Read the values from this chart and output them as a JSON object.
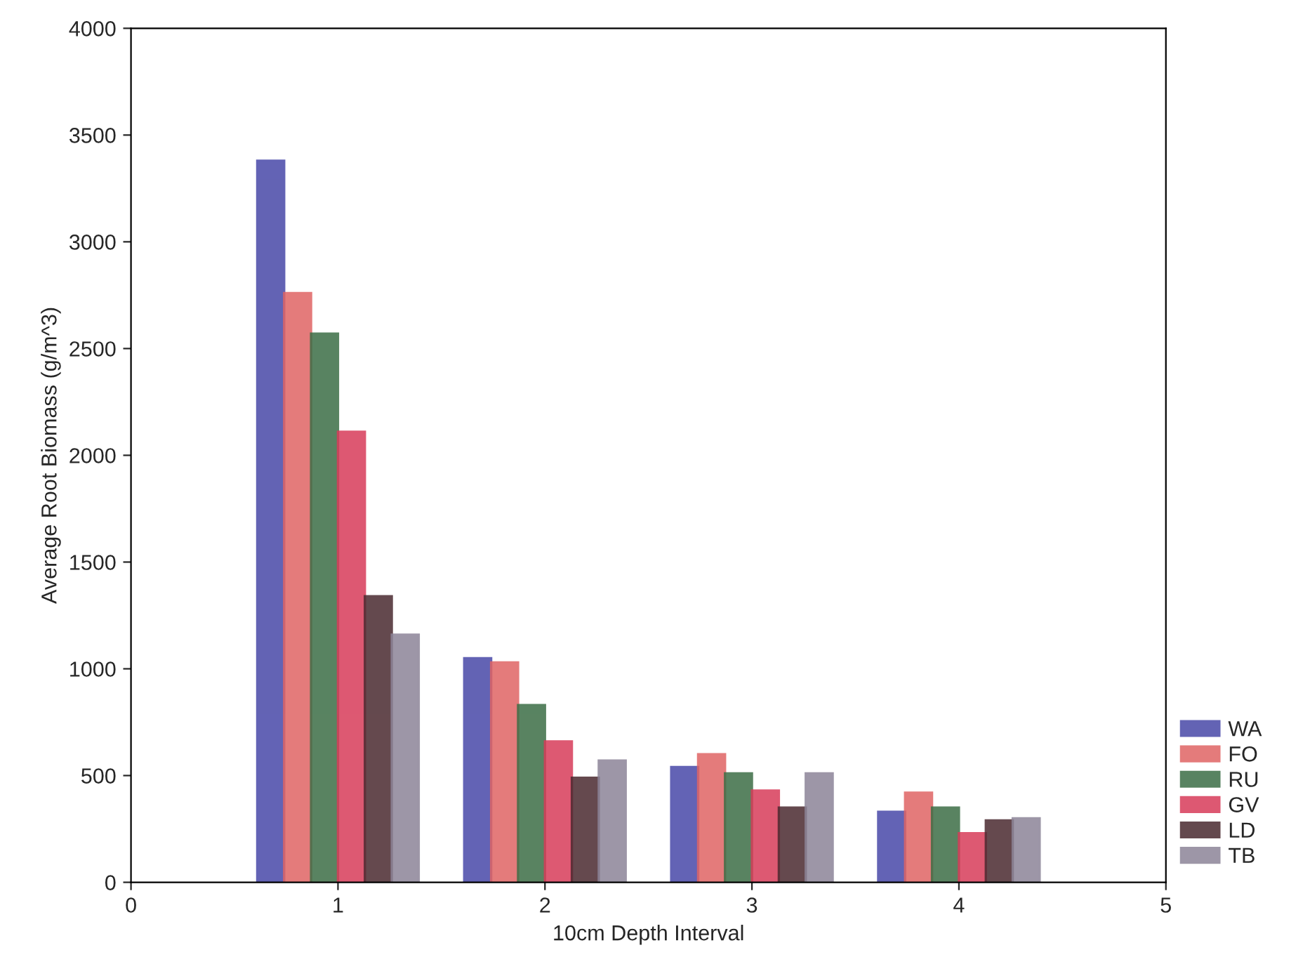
{
  "chart_data": {
    "type": "bar",
    "xlabel": "10cm Depth Interval",
    "ylabel": "Average Root Biomass (g/m^3)",
    "x": [
      1,
      2,
      3,
      4
    ],
    "series": [
      {
        "name": "WA",
        "color": "#4848a8",
        "values": [
          3380,
          1050,
          540,
          330
        ]
      },
      {
        "name": "FO",
        "color": "#e06464",
        "values": [
          2760,
          1030,
          600,
          420
        ]
      },
      {
        "name": "RU",
        "color": "#3c6e46",
        "values": [
          2570,
          830,
          510,
          350
        ]
      },
      {
        "name": "GV",
        "color": "#d83c5a",
        "values": [
          2110,
          660,
          430,
          230
        ]
      },
      {
        "name": "LD",
        "color": "#4a2a30",
        "values": [
          1340,
          490,
          350,
          290
        ]
      },
      {
        "name": "TB",
        "color": "#8c8498",
        "values": [
          1160,
          570,
          510,
          300
        ]
      }
    ],
    "xlim": [
      0,
      5
    ],
    "xticks": [
      0,
      1,
      2,
      3,
      4,
      5
    ],
    "ylim": [
      0,
      4000
    ],
    "yticks": [
      0,
      500,
      1000,
      1500,
      2000,
      2500,
      3000,
      3500,
      4000
    ],
    "grid": false,
    "legend": "bottom right"
  }
}
